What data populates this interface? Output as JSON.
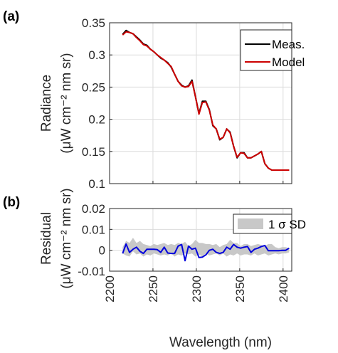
{
  "chart_data": [
    {
      "panel_label": "(a)",
      "type": "line",
      "ylabel": "Radiance",
      "ylabel_unit": "(μW cm⁻² nm sr)",
      "ylim": [
        0.1,
        0.35
      ],
      "yticks": [
        "0.1",
        "0.15",
        "0.2",
        "0.25",
        "0.3",
        "0.35"
      ],
      "xlim": [
        2200,
        2410
      ],
      "grid": true,
      "legend": {
        "position": "top-right"
      },
      "x": [
        2215,
        2219,
        2223,
        2227,
        2231,
        2235,
        2239,
        2243,
        2247,
        2251,
        2255,
        2259,
        2263,
        2267,
        2271,
        2275,
        2279,
        2283,
        2287,
        2291,
        2295,
        2299,
        2303,
        2307,
        2311,
        2315,
        2319,
        2323,
        2327,
        2331,
        2335,
        2339,
        2343,
        2347,
        2351,
        2355,
        2359,
        2363,
        2367,
        2371,
        2375,
        2379,
        2383,
        2387,
        2391,
        2395,
        2399,
        2403,
        2407
      ],
      "series": [
        {
          "name": "Meas.",
          "color": "#000000",
          "values": [
            0.332,
            0.338,
            0.335,
            0.333,
            0.328,
            0.323,
            0.317,
            0.315,
            0.309,
            0.305,
            0.3,
            0.295,
            0.292,
            0.288,
            0.281,
            0.27,
            0.259,
            0.253,
            0.25,
            0.252,
            0.261,
            0.235,
            0.209,
            0.228,
            0.228,
            0.215,
            0.19,
            0.185,
            0.168,
            0.172,
            0.185,
            0.18,
            0.158,
            0.14,
            0.148,
            0.148,
            0.14,
            0.14,
            0.143,
            0.146,
            0.15,
            0.131,
            0.124,
            0.121,
            0.121,
            0.121,
            0.121,
            0.121,
            0.121
          ]
        },
        {
          "name": "Model",
          "color": "#cc0000",
          "values": [
            0.331,
            0.336,
            0.335,
            0.333,
            0.327,
            0.322,
            0.316,
            0.314,
            0.309,
            0.305,
            0.3,
            0.296,
            0.292,
            0.287,
            0.282,
            0.27,
            0.259,
            0.252,
            0.25,
            0.251,
            0.259,
            0.235,
            0.208,
            0.226,
            0.227,
            0.214,
            0.191,
            0.185,
            0.169,
            0.172,
            0.185,
            0.179,
            0.158,
            0.141,
            0.148,
            0.147,
            0.14,
            0.14,
            0.143,
            0.146,
            0.15,
            0.131,
            0.124,
            0.121,
            0.121,
            0.121,
            0.121,
            0.121,
            0.121
          ]
        }
      ]
    },
    {
      "panel_label": "(b)",
      "type": "line",
      "ylabel": "Residual",
      "ylabel_unit": "(μW cm⁻² nm sr)",
      "ylim": [
        -0.01,
        0.02
      ],
      "yticks": [
        "-0.01",
        "0",
        "0.01",
        "0.02"
      ],
      "xlim": [
        2200,
        2410
      ],
      "xticks": [
        "2200",
        "2250",
        "2300",
        "2350",
        "2400"
      ],
      "xlabel": "Wavelength (nm)",
      "grid": true,
      "legend": {
        "position": "top-right"
      },
      "x": [
        2215,
        2219,
        2223,
        2227,
        2231,
        2235,
        2239,
        2243,
        2247,
        2251,
        2255,
        2259,
        2263,
        2267,
        2271,
        2275,
        2279,
        2283,
        2287,
        2291,
        2295,
        2299,
        2303,
        2307,
        2311,
        2315,
        2319,
        2323,
        2327,
        2331,
        2335,
        2339,
        2343,
        2347,
        2351,
        2355,
        2359,
        2363,
        2367,
        2371,
        2375,
        2379,
        2383,
        2387,
        2391,
        2395,
        2399,
        2403,
        2407
      ],
      "series": [
        {
          "name": "Residual",
          "color": "#0000dd",
          "values": [
            -0.0015,
            0.003,
            -0.001,
            0.0005,
            0.0015,
            -0.0005,
            -0.0015,
            0.0005,
            0.0005,
            0.0005,
            0.0003,
            -0.001,
            0.0015,
            -0.0013,
            -0.0015,
            -0.0015,
            0.002,
            0.0028,
            -0.005,
            0.002,
            0.0005,
            0.001,
            -0.0035,
            -0.0033,
            -0.0022,
            0.0,
            0.0005,
            -0.001,
            -0.0015,
            -0.001,
            0.0015,
            0.0005,
            0.0028,
            0.0015,
            0.001,
            0.0015,
            0.0018,
            -0.001,
            0.0005,
            0.001,
            0.0018,
            0.0023,
            -0.0002,
            -0.0002,
            -0.0002,
            -0.0002,
            0.0,
            0.0,
            0.001
          ]
        }
      ],
      "band": {
        "name": "1 σ SD",
        "color": "#c8c8c8",
        "upper": [
          0.0015,
          0.0045,
          0.0035,
          0.006,
          0.0035,
          0.0045,
          0.003,
          0.0025,
          0.002,
          0.003,
          0.0025,
          0.003,
          0.0035,
          0.0025,
          0.003,
          0.0025,
          0.0035,
          0.003,
          0.004,
          0.002,
          0.003,
          0.005,
          0.0035,
          0.0035,
          0.003,
          0.003,
          0.0025,
          0.003,
          0.0015,
          0.0025,
          0.003,
          0.005,
          0.0035,
          0.0035,
          0.002,
          0.003,
          0.003,
          0.002,
          0.0025,
          0.003,
          0.0025,
          0.002,
          0.003,
          0.003,
          0.0015,
          0.001,
          0.0015,
          0.0015,
          0.001
        ],
        "lower": [
          -0.0015,
          -0.0025,
          -0.003,
          -0.0005,
          -0.002,
          -0.0015,
          -0.003,
          -0.002,
          -0.0025,
          -0.0015,
          -0.002,
          -0.0025,
          -0.002,
          -0.0025,
          -0.0015,
          -0.003,
          -0.002,
          -0.0025,
          -0.0015,
          -0.002,
          -0.0015,
          -0.003,
          -0.002,
          -0.003,
          -0.0015,
          -0.0025,
          -0.002,
          -0.0015,
          -0.0025,
          -0.0015,
          -0.003,
          -0.002,
          -0.0025,
          -0.0015,
          -0.0025,
          -0.002,
          -0.002,
          -0.0025,
          -0.0015,
          -0.0025,
          -0.002,
          -0.0015,
          -0.0025,
          -0.002,
          -0.0015,
          -0.002,
          -0.0015,
          -0.0015,
          -0.001
        ]
      }
    }
  ]
}
